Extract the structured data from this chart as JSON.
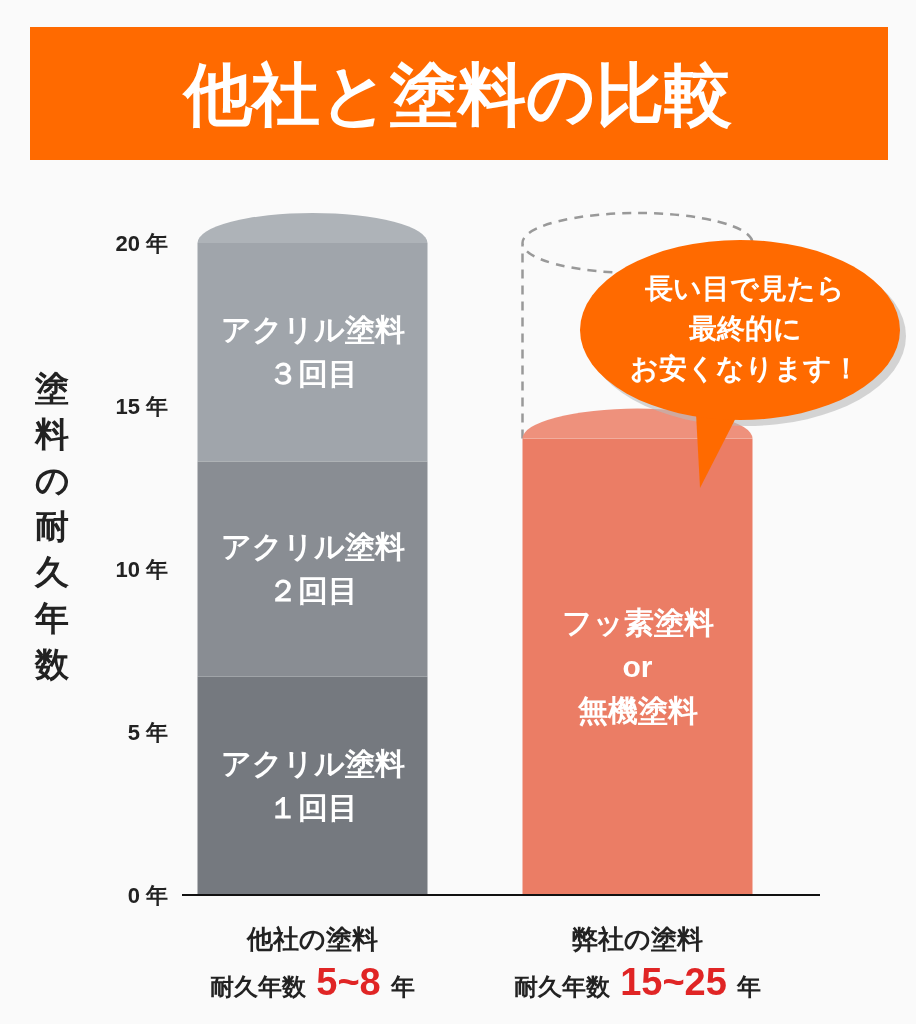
{
  "chart_data": {
    "type": "bar",
    "stacked": true,
    "title": "他社と塗料の比較",
    "ylabel": "塗料の耐久年数",
    "categories": [
      "他社の塗料",
      "弊社の塗料"
    ],
    "series": [
      {
        "name": "アクリル塗料１回目",
        "color": "#75797f",
        "values": [
          6.7,
          null
        ]
      },
      {
        "name": "アクリル塗料２回目",
        "color": "#898d93",
        "values": [
          6.6,
          null
        ]
      },
      {
        "name": "アクリル塗料３回目",
        "color": "#a0a5ab",
        "values": [
          6.7,
          null
        ]
      },
      {
        "name": "フッ素塗料 or 無機塗料",
        "color": "#eb7d65",
        "values": [
          null,
          14.0
        ]
      }
    ],
    "ylim": [
      0,
      20
    ],
    "yticks": [
      {
        "value": 0,
        "label": "0 年"
      },
      {
        "value": 5,
        "label": "5 年"
      },
      {
        "value": 10,
        "label": "10 年"
      },
      {
        "value": 15,
        "label": "15 年"
      },
      {
        "value": 20,
        "label": "20 年"
      }
    ],
    "annotations": [
      "長い目で見たら",
      "最終的に",
      "お安くなります！",
      "耐久年数 5~8 年",
      "耐久年数 15~25 年"
    ]
  }
}
